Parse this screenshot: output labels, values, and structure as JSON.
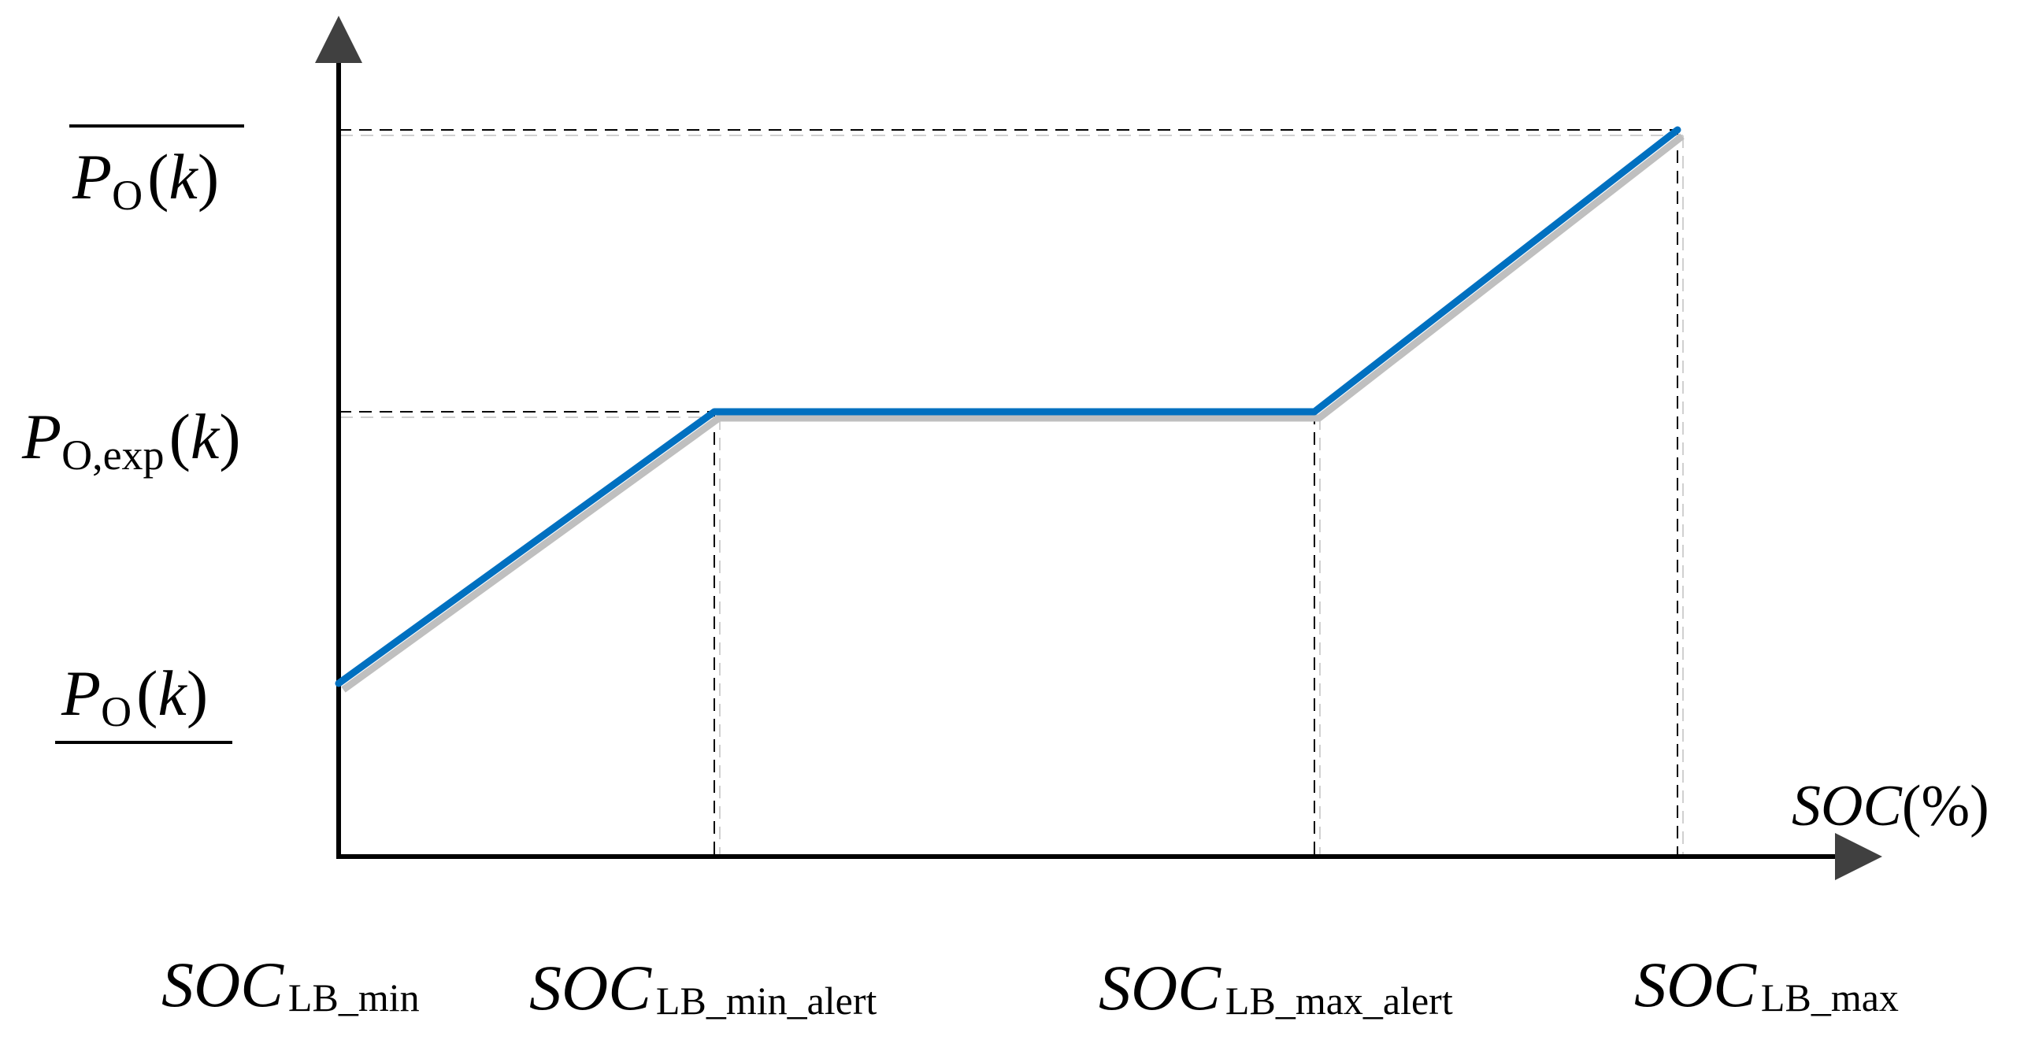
{
  "diagram": {
    "line_color": "#0070C0",
    "shadow_color": "#BFBFBF",
    "axis_color": "#000000",
    "guide_color": "#000000",
    "x_axis": {
      "symbol": "SOC",
      "unit": "(%)"
    },
    "y_labels": {
      "upper": {
        "symbol": "P",
        "subscript": "O",
        "arg_open": "(",
        "arg": "k",
        "arg_close": ")",
        "bar": "overline"
      },
      "expected": {
        "symbol": "P",
        "subscript": "O,exp",
        "arg_open": "(",
        "arg": "k",
        "arg_close": ")"
      },
      "lower": {
        "symbol": "P",
        "subscript": "O",
        "arg_open": "(",
        "arg": "k",
        "arg_close": ")",
        "bar": "underline"
      }
    },
    "x_labels": [
      {
        "symbol": "SOC",
        "subscript": "LB_min"
      },
      {
        "symbol": "SOC",
        "subscript": "LB_min_alert"
      },
      {
        "symbol": "SOC",
        "subscript": "LB_max_alert"
      },
      {
        "symbol": "SOC",
        "subscript": "LB_max"
      }
    ],
    "curve_levels": [
      "lower",
      "expected",
      "expected",
      "upper"
    ]
  }
}
